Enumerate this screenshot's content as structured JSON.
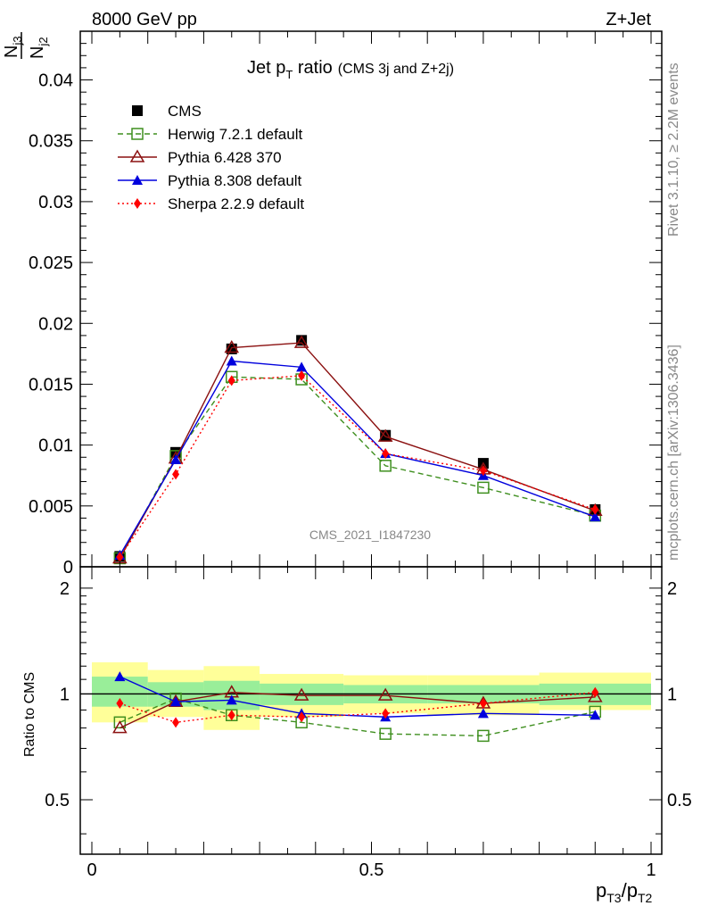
{
  "header": {
    "beam": "8000 GeV pp",
    "process": "Z+Jet"
  },
  "side_labels": {
    "rivet": "Rivet 3.1.10, ≥ 2.2M events",
    "mcplots": "mcplots.cern.ch [arXiv:1306.3436]"
  },
  "analysis_id": "CMS_2021_I1847230",
  "labels": {
    "y_main_num": "N",
    "y_main_num_sub": "j3",
    "y_main_den": "N",
    "y_main_den_sub": "j2",
    "y_ratio": "Ratio to CMS",
    "x_p1": "p",
    "x_sub1": "T3",
    "x_slash": "/p",
    "x_sub2": "T2",
    "title_main": "Jet p",
    "title_sub": "T",
    "title_rest": " ratio",
    "title_small": "(CMS 3j and Z+2j)"
  },
  "ticks": {
    "main_y": [
      "0",
      "0.005",
      "0.01",
      "0.015",
      "0.02",
      "0.025",
      "0.03",
      "0.035",
      "0.04"
    ],
    "ratio_y": [
      "0.5",
      "1",
      "2"
    ],
    "x": [
      "0",
      "0.5",
      "1"
    ]
  },
  "chart_data": {
    "type": "line",
    "x_edges": [
      0,
      0.1,
      0.2,
      0.3,
      0.45,
      0.6,
      0.8,
      1.0
    ],
    "x": [
      0.05,
      0.15,
      0.25,
      0.375,
      0.525,
      0.7,
      0.9
    ],
    "xlim": [
      0,
      1
    ],
    "ylim": [
      0,
      0.044
    ],
    "ratio_ylim": [
      0.35,
      2.3
    ],
    "ratio_scale": "log",
    "legend_position": "top-left",
    "series": [
      {
        "name": "CMS",
        "values": [
          0.00085,
          0.0094,
          0.0179,
          0.0186,
          0.0108,
          0.0085,
          0.0047
        ],
        "color": "#000000",
        "marker": "filled-square",
        "line": "none"
      },
      {
        "name": "Herwig 7.2.1 default",
        "values": [
          0.0007,
          0.0091,
          0.0156,
          0.0154,
          0.0083,
          0.0065,
          0.0042
        ],
        "color": "#3f8f1f",
        "marker": "open-square",
        "line": "dashed"
      },
      {
        "name": "Pythia 6.428 370",
        "values": [
          0.0007,
          0.0089,
          0.018,
          0.0184,
          0.0107,
          0.008,
          0.0046
        ],
        "color": "#8b1010",
        "marker": "open-triangle",
        "line": "solid"
      },
      {
        "name": "Pythia 8.308 default",
        "values": [
          0.00095,
          0.0088,
          0.0169,
          0.0164,
          0.0093,
          0.0075,
          0.0041
        ],
        "color": "#0000dd",
        "marker": "filled-triangle",
        "line": "solid"
      },
      {
        "name": "Sherpa 2.2.9 default",
        "values": [
          0.0008,
          0.0076,
          0.0153,
          0.0157,
          0.0093,
          0.0079,
          0.0047
        ],
        "color": "#ff0000",
        "marker": "filled-diamond",
        "line": "dotted"
      }
    ],
    "ratio_series": [
      {
        "name": "Herwig 7.2.1 default",
        "values": [
          0.83,
          0.97,
          0.87,
          0.83,
          0.77,
          0.76,
          0.89
        ]
      },
      {
        "name": "Pythia 6.428 370",
        "values": [
          0.8,
          0.95,
          1.01,
          0.99,
          0.99,
          0.94,
          0.98
        ]
      },
      {
        "name": "Pythia 8.308 default",
        "values": [
          1.12,
          0.95,
          0.96,
          0.88,
          0.86,
          0.88,
          0.87
        ]
      },
      {
        "name": "Sherpa 2.2.9 default",
        "values": [
          0.94,
          0.83,
          0.87,
          0.86,
          0.88,
          0.94,
          1.01
        ]
      }
    ],
    "ratio_band_inner": [
      [
        0.92,
        1.12
      ],
      [
        0.92,
        1.08
      ],
      [
        0.9,
        1.09
      ],
      [
        0.93,
        1.07
      ],
      [
        0.94,
        1.06
      ],
      [
        0.94,
        1.06
      ],
      [
        0.93,
        1.07
      ]
    ],
    "ratio_band_outer": [
      [
        0.83,
        1.23
      ],
      [
        0.86,
        1.17
      ],
      [
        0.79,
        1.2
      ],
      [
        0.86,
        1.14
      ],
      [
        0.88,
        1.13
      ],
      [
        0.87,
        1.13
      ],
      [
        0.9,
        1.15
      ]
    ]
  }
}
